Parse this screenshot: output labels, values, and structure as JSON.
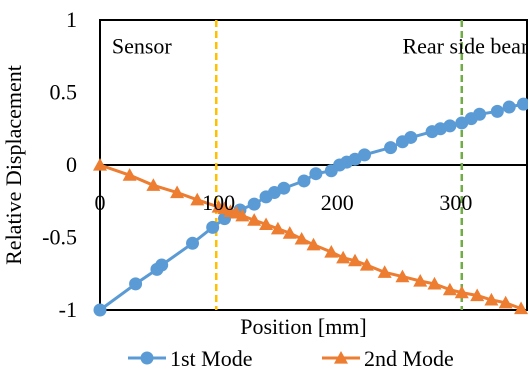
{
  "chart_data": {
    "type": "line",
    "title": "",
    "xlabel": "Position [mm]",
    "ylabel": "Relative Displacement",
    "xlim": [
      0,
      360
    ],
    "ylim": [
      -1,
      1
    ],
    "x_ticks": [
      {
        "value": 0,
        "label": "0"
      },
      {
        "value": 100,
        "label": "100"
      },
      {
        "value": 200,
        "label": "200"
      },
      {
        "value": 300,
        "label": "300"
      }
    ],
    "y_ticks": [
      {
        "value": 1,
        "label": "1"
      },
      {
        "value": 0.5,
        "label": "0.5"
      },
      {
        "value": 0,
        "label": "0"
      },
      {
        "value": -0.5,
        "label": "-0.5"
      },
      {
        "value": -1,
        "label": "-1"
      }
    ],
    "grid": false,
    "legend_position": "bottom",
    "annotations": [
      {
        "text": "Sensor",
        "x": 10,
        "y": 0.77
      },
      {
        "text": "Rear side bearing",
        "x": 255,
        "y": 0.77
      }
    ],
    "vlines": [
      {
        "x": 98,
        "color": "#ffc000",
        "style": "dashed"
      },
      {
        "x": 305,
        "color": "#70ad47",
        "style": "dashed"
      }
    ],
    "series": [
      {
        "name": "1st Mode",
        "color": "#5b9bd5",
        "marker": "circle",
        "x": [
          0,
          30,
          48,
          52,
          78,
          95,
          105,
          118,
          130,
          140,
          147,
          155,
          172,
          182,
          195,
          202,
          208,
          215,
          223,
          245,
          255,
          262,
          280,
          287,
          295,
          305,
          313,
          320,
          335,
          345,
          357
        ],
        "y": [
          -1.0,
          -0.82,
          -0.72,
          -0.69,
          -0.54,
          -0.43,
          -0.37,
          -0.31,
          -0.27,
          -0.22,
          -0.19,
          -0.16,
          -0.11,
          -0.06,
          -0.04,
          0.0,
          0.02,
          0.04,
          0.07,
          0.12,
          0.16,
          0.19,
          0.23,
          0.25,
          0.27,
          0.29,
          0.32,
          0.35,
          0.37,
          0.4,
          0.42
        ]
      },
      {
        "name": "2nd Mode",
        "color": "#ed7d31",
        "marker": "triangle",
        "x": [
          0,
          25,
          45,
          65,
          82,
          100,
          105,
          110,
          115,
          120,
          130,
          140,
          150,
          160,
          170,
          180,
          195,
          205,
          215,
          225,
          240,
          255,
          270,
          282,
          295,
          305,
          318,
          330,
          342,
          355
        ],
        "y": [
          0.0,
          -0.07,
          -0.14,
          -0.19,
          -0.24,
          -0.29,
          -0.3,
          -0.32,
          -0.33,
          -0.35,
          -0.38,
          -0.41,
          -0.44,
          -0.47,
          -0.51,
          -0.55,
          -0.6,
          -0.64,
          -0.66,
          -0.69,
          -0.74,
          -0.77,
          -0.8,
          -0.82,
          -0.86,
          -0.88,
          -0.9,
          -0.93,
          -0.95,
          -0.99
        ]
      }
    ]
  }
}
